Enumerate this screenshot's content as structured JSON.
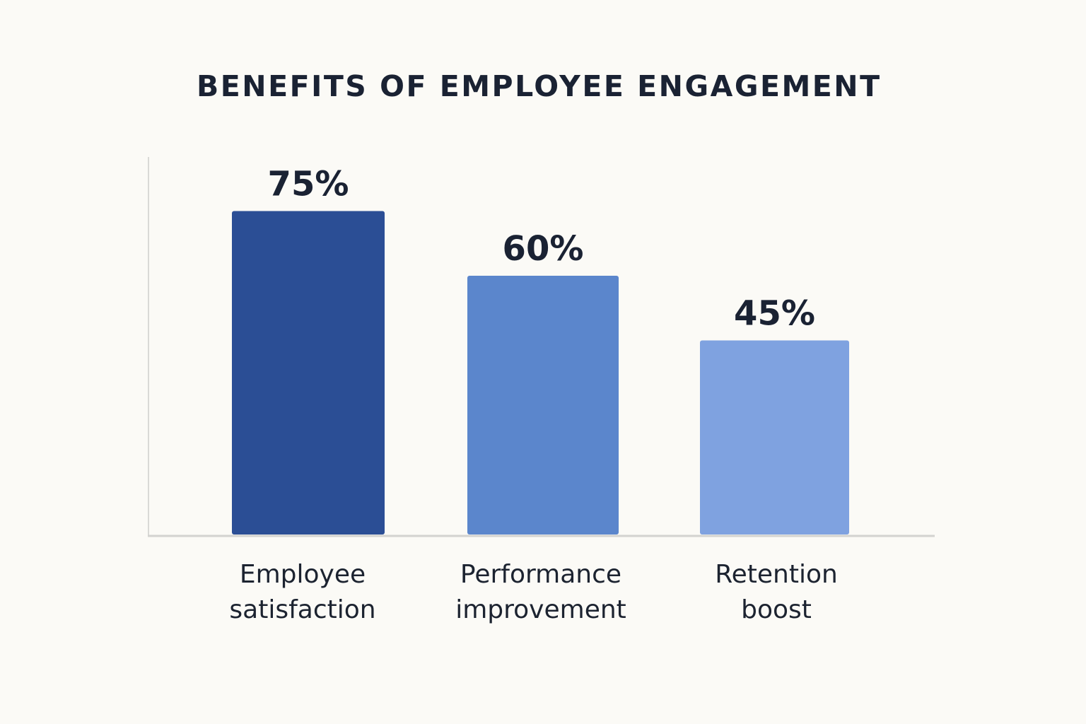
{
  "chart_data": {
    "type": "bar",
    "title": "BENEFITS OF EMPLOYEE ENGAGEMENT",
    "categories": [
      "Employee\nsatisfaction",
      "Performance\nimprovement",
      "Retention\nboost"
    ],
    "values": [
      75,
      60,
      45
    ],
    "value_labels": [
      "75%",
      "60%",
      "45%"
    ],
    "unit": "%",
    "colors": [
      "#2b4e95",
      "#5b86cc",
      "#7fa2e0"
    ],
    "xlabel": "",
    "ylabel": "",
    "ylim": [
      0,
      87
    ],
    "grid": false,
    "legend": "none"
  }
}
